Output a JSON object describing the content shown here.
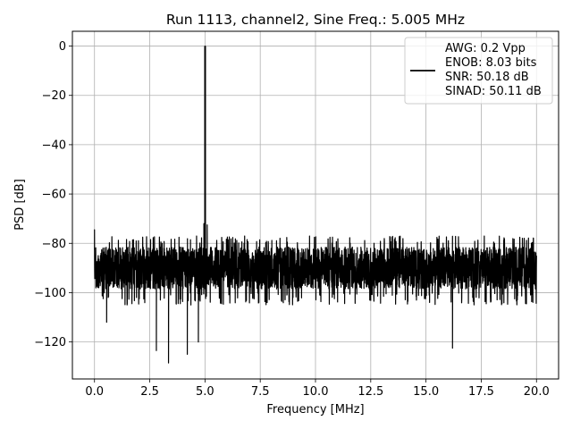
{
  "chart_data": {
    "type": "line",
    "title": "Run 1113, channel2, Sine Freq.: 5.005 MHz",
    "xlabel": "Frequency [MHz]",
    "ylabel": "PSD [dB]",
    "xlim": [
      -1.0,
      21.0
    ],
    "ylim": [
      -135,
      6
    ],
    "xticks": [
      0.0,
      2.5,
      5.0,
      7.5,
      10.0,
      12.5,
      15.0,
      17.5,
      20.0
    ],
    "xtick_labels": [
      "0.0",
      "2.5",
      "5.0",
      "7.5",
      "10.0",
      "12.5",
      "15.0",
      "17.5",
      "20.0"
    ],
    "yticks": [
      0,
      -20,
      -40,
      -60,
      -80,
      -100,
      -120
    ],
    "ytick_labels": [
      "0",
      "−20",
      "−40",
      "−60",
      "−80",
      "−100",
      "−120"
    ],
    "grid": true,
    "legend_position": "top-right",
    "series": [
      {
        "name": "PSD",
        "legend_lines": [
          "AWG: 0.2 Vpp",
          "ENOB: 8.03 bits",
          "SNR: 50.18 dB",
          "SINAD: 50.11 dB"
        ],
        "color": "#000000",
        "peak_frequency_mhz": 5.005,
        "peak_db": 0,
        "noise_floor_db_range": [
          -100,
          -80
        ],
        "dips": [
          {
            "x": 2.8,
            "y": -123.5
          },
          {
            "x": 3.35,
            "y": -128.5
          },
          {
            "x": 4.2,
            "y": -125.0
          },
          {
            "x": 4.7,
            "y": -120.0
          },
          {
            "x": 16.2,
            "y": -122.5
          },
          {
            "x": 0.55,
            "y": -112.0
          }
        ],
        "spurs": [
          {
            "x": 0.0,
            "y": -74.5
          },
          {
            "x": 4.95,
            "y": -72.0
          },
          {
            "x": 5.1,
            "y": -72.5
          }
        ]
      }
    ]
  }
}
